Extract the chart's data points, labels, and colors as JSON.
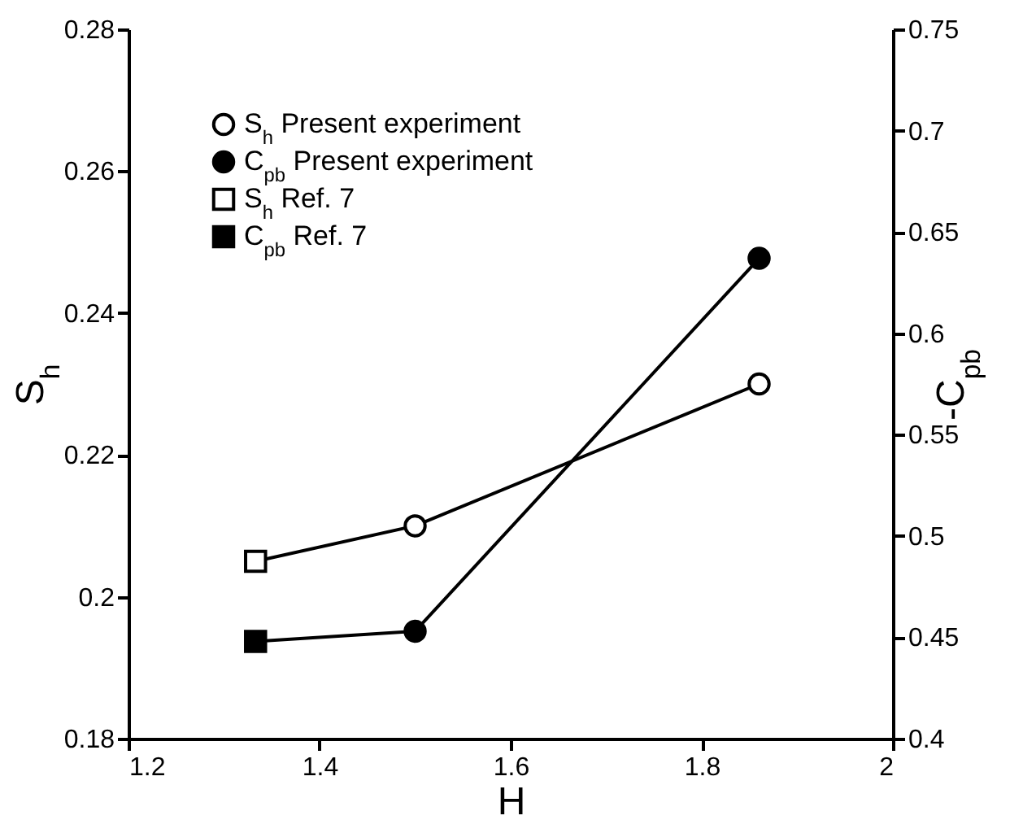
{
  "chart_data": {
    "type": "line",
    "xlabel": "H",
    "ylabel": "S$_{h}$",
    "y2label": "-C$_{pb}$",
    "xlim": [
      1.2,
      2
    ],
    "xticks": [
      1.2,
      1.4,
      1.6,
      1.8,
      2
    ],
    "ylim": [
      0.18,
      0.28
    ],
    "yticks": [
      0.18,
      0.2,
      0.22,
      0.24,
      0.26,
      0.28
    ],
    "y2lim": [
      0.4,
      0.75
    ],
    "y2ticks": [
      0.4,
      0.45,
      0.5,
      0.55,
      0.6,
      0.65,
      0.7,
      0.75
    ],
    "legend": "top left",
    "grid": false,
    "series": [
      {
        "marker": "none",
        "color": "#000000",
        "x": [
          1.333,
          1.5,
          1.86
        ],
        "values": [
          0.205,
          0.21,
          0.23
        ]
      },
      {
        "marker": "none",
        "color": "#000000",
        "axis": "y2",
        "x": [
          1.333,
          1.5,
          1.86
        ],
        "values": [
          0.448,
          0.453,
          0.637
        ]
      },
      {
        "name": "S$_{h}$ Present experiment",
        "type": "scatter",
        "marker": "circle",
        "color": "#000000",
        "x": [
          1.5,
          1.86
        ],
        "values": [
          0.21,
          0.23
        ]
      },
      {
        "name": "C$_{pb}$ Present experiment",
        "type": "scatter",
        "marker": "circle",
        "color": "#000000",
        "axis": "y2",
        "x": [
          1.5,
          1.86
        ],
        "values": [
          0.453,
          0.637
        ]
      },
      {
        "name": "S$_{h}$ Ref. 7",
        "type": "scatter",
        "marker": "square",
        "color": "#000000",
        "x": [
          1.333
        ],
        "values": [
          0.205
        ]
      },
      {
        "name": "C$_{pb}$ Ref. 7",
        "type": "scatter",
        "marker": "square",
        "color": "#000000",
        "axis": "y2",
        "x": [
          1.333
        ],
        "values": [
          0.448
        ]
      }
    ]
  }
}
